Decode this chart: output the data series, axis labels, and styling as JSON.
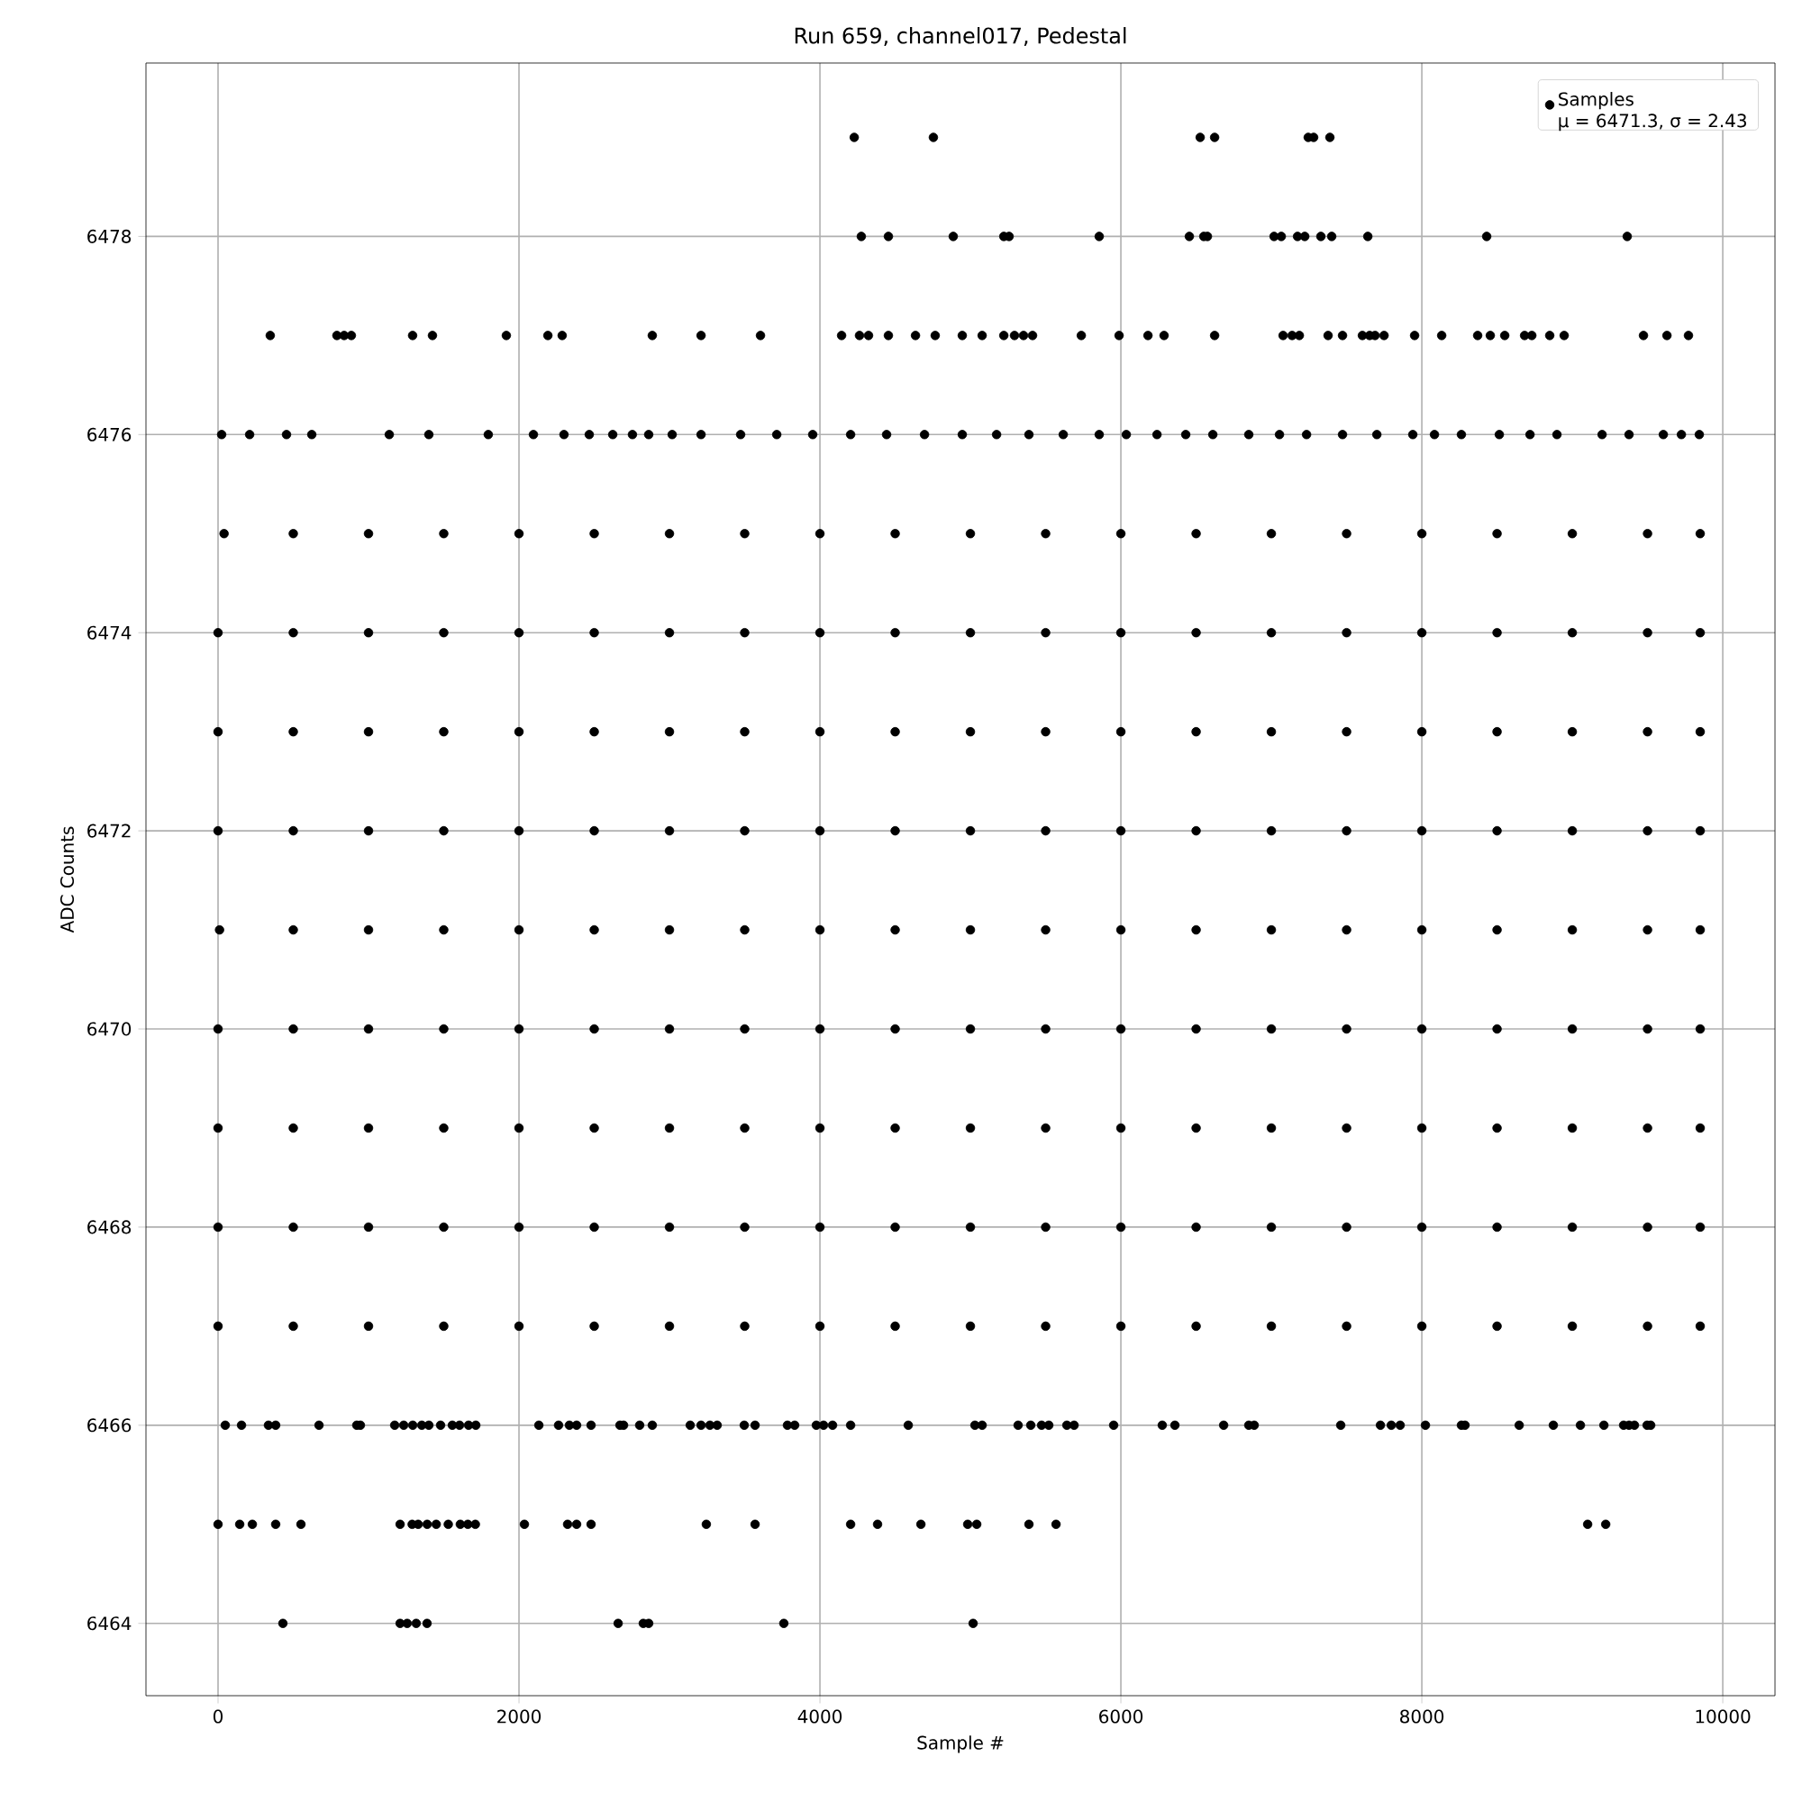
{
  "chart_data": {
    "type": "scatter",
    "title": "Run 659, channel017, Pedestal",
    "xlabel": "Sample #",
    "ylabel": "ADC Counts",
    "annotations": [
      "μ = 6471.3, σ = 2.43"
    ],
    "xlim": [
      -479,
      10347
    ],
    "ylim": [
      6463.27,
      6479.75
    ],
    "xticks": [
      0,
      2000,
      4000,
      6000,
      8000,
      10000
    ],
    "yticks": [
      6464,
      6466,
      6468,
      6470,
      6472,
      6474,
      6476,
      6478
    ],
    "grid": true,
    "legend": "top right",
    "marker": "circle",
    "series": [
      {
        "name": "Samples",
        "color": "#000000",
        "x": [
          4228,
          4754,
          6527,
          6623,
          7245,
          7281,
          7389
        ],
        "values": [
          6479,
          6479,
          6479,
          6479,
          6479,
          6479,
          6479
        ]
      },
      {
        "color": "#000000",
        "x": [
          4275,
          4455,
          4886,
          5222,
          5257,
          5856,
          6455,
          6551,
          6575,
          7018,
          7066,
          7174,
          7222,
          7329,
          7401,
          7641,
          8431,
          9365
        ],
        "values": [
          6478,
          6478,
          6478,
          6478,
          6478,
          6478,
          6478,
          6478,
          6478,
          6478,
          6478,
          6478,
          6478,
          6478,
          6478,
          6478,
          6478,
          6478
        ]
      },
      {
        "color": "#000000",
        "x": [
          347,
          790,
          838,
          886,
          1293,
          1425,
          1916,
          2192,
          2287,
          2886,
          3210,
          3605,
          4144,
          4263,
          4323,
          4455,
          4635,
          4766,
          4946,
          5078,
          5222,
          5293,
          5353,
          5413,
          5737,
          5988,
          6180,
          6287,
          6623,
          7078,
          7138,
          7186,
          7377,
          7473,
          7605,
          7653,
          7689,
          7749,
          7952,
          8132,
          8371,
          8455,
          8551,
          8683,
          8731,
          8850,
          8946,
          9473,
          9629,
          9772
        ],
        "values": [
          6477,
          6477,
          6477,
          6477,
          6477,
          6477,
          6477,
          6477,
          6477,
          6477,
          6477,
          6477,
          6477,
          6477,
          6477,
          6477,
          6477,
          6477,
          6477,
          6477,
          6477,
          6477,
          6477,
          6477,
          6477,
          6477,
          6477,
          6477,
          6477,
          6477,
          6477,
          6477,
          6477,
          6477,
          6477,
          6477,
          6477,
          6477,
          6477,
          6477,
          6477,
          6477,
          6477,
          6477,
          6477,
          6477,
          6477,
          6477,
          6477,
          6477
        ]
      },
      {
        "color": "#000000",
        "x": [
          24,
          210,
          455,
          623,
          1138,
          1401,
          1796,
          2096,
          2299,
          2467,
          2623,
          2754,
          2862,
          3018,
          3210,
          3473,
          3713,
          3952,
          4204,
          4443,
          4695,
          4946,
          5174,
          5389,
          5617,
          5856,
          6036,
          6240,
          6431,
          6611,
          6850,
          7054,
          7234,
          7473,
          7701,
          7940,
          8084,
          8263,
          8515,
          8719,
          8898,
          9198,
          9377,
          9605,
          9725,
          9844
        ],
        "values": [
          6476,
          6476,
          6476,
          6476,
          6476,
          6476,
          6476,
          6476,
          6476,
          6476,
          6476,
          6476,
          6476,
          6476,
          6476,
          6476,
          6476,
          6476,
          6476,
          6476,
          6476,
          6476,
          6476,
          6476,
          6476,
          6476,
          6476,
          6476,
          6476,
          6476,
          6476,
          6476,
          6476,
          6476,
          6476,
          6476,
          6476,
          6476,
          6476,
          6476,
          6476,
          6476,
          6476,
          6476,
          6476,
          6476
        ]
      },
      {
        "color": "#000000",
        "x": [
          40,
          500,
          1000,
          1500,
          2000,
          2500,
          3000,
          3500,
          4000,
          4500,
          5000,
          5500,
          6000,
          6500,
          7000,
          7500,
          8000,
          8500,
          9000,
          9500,
          9850
        ],
        "values": [
          6475,
          6475,
          6475,
          6475,
          6475,
          6475,
          6475,
          6475,
          6475,
          6475,
          6475,
          6475,
          6475,
          6475,
          6475,
          6475,
          6475,
          6475,
          6475,
          6475,
          6475
        ]
      },
      {
        "color": "#000000",
        "x": [
          0,
          500,
          1000,
          1500,
          2000,
          2500,
          3000,
          3500,
          4000,
          4500,
          5000,
          5500,
          6000,
          6500,
          7000,
          7500,
          8000,
          8500,
          9000,
          9500,
          9850
        ],
        "values": [
          6474,
          6474,
          6474,
          6474,
          6474,
          6474,
          6474,
          6474,
          6474,
          6474,
          6474,
          6474,
          6474,
          6474,
          6474,
          6474,
          6474,
          6474,
          6474,
          6474,
          6474
        ]
      },
      {
        "color": "#000000",
        "x": [
          0,
          500,
          1000,
          1500,
          2000,
          2500,
          3000,
          3500,
          4000,
          4500,
          5000,
          5500,
          6000,
          6500,
          7000,
          7500,
          8000,
          8500,
          9000,
          9500,
          9850
        ],
        "values": [
          6473,
          6473,
          6473,
          6473,
          6473,
          6473,
          6473,
          6473,
          6473,
          6473,
          6473,
          6473,
          6473,
          6473,
          6473,
          6473,
          6473,
          6473,
          6473,
          6473,
          6473
        ]
      },
      {
        "color": "#000000",
        "x": [
          0,
          500,
          1000,
          1500,
          2000,
          2500,
          3000,
          3500,
          4000,
          4500,
          5000,
          5500,
          6000,
          6500,
          7000,
          7500,
          8000,
          8500,
          9000,
          9500,
          9850
        ],
        "values": [
          6472,
          6472,
          6472,
          6472,
          6472,
          6472,
          6472,
          6472,
          6472,
          6472,
          6472,
          6472,
          6472,
          6472,
          6472,
          6472,
          6472,
          6472,
          6472,
          6472,
          6472
        ]
      },
      {
        "color": "#000000",
        "x": [
          10,
          500,
          1000,
          1500,
          2000,
          2500,
          3000,
          3500,
          4000,
          4500,
          5000,
          5500,
          6000,
          6500,
          7000,
          7500,
          8000,
          8500,
          9000,
          9500,
          9850
        ],
        "values": [
          6471,
          6471,
          6471,
          6471,
          6471,
          6471,
          6471,
          6471,
          6471,
          6471,
          6471,
          6471,
          6471,
          6471,
          6471,
          6471,
          6471,
          6471,
          6471,
          6471,
          6471
        ]
      },
      {
        "color": "#000000",
        "x": [
          0,
          500,
          1000,
          1500,
          2000,
          2500,
          3000,
          3500,
          4000,
          4500,
          5000,
          5500,
          6000,
          6500,
          7000,
          7500,
          8000,
          8500,
          9000,
          9500,
          9850
        ],
        "values": [
          6470,
          6470,
          6470,
          6470,
          6470,
          6470,
          6470,
          6470,
          6470,
          6470,
          6470,
          6470,
          6470,
          6470,
          6470,
          6470,
          6470,
          6470,
          6470,
          6470,
          6470
        ]
      },
      {
        "color": "#000000",
        "x": [
          0,
          500,
          1000,
          1500,
          2000,
          2500,
          3000,
          3500,
          4000,
          4500,
          5000,
          5500,
          6000,
          6500,
          7000,
          7500,
          8000,
          8500,
          9000,
          9500,
          9850
        ],
        "values": [
          6469,
          6469,
          6469,
          6469,
          6469,
          6469,
          6469,
          6469,
          6469,
          6469,
          6469,
          6469,
          6469,
          6469,
          6469,
          6469,
          6469,
          6469,
          6469,
          6469,
          6469
        ]
      },
      {
        "color": "#000000",
        "x": [
          0,
          500,
          1000,
          1500,
          2000,
          2500,
          3000,
          3500,
          4000,
          4500,
          5000,
          5500,
          6000,
          6500,
          7000,
          7500,
          8000,
          8500,
          9000,
          9500,
          9850
        ],
        "values": [
          6468,
          6468,
          6468,
          6468,
          6468,
          6468,
          6468,
          6468,
          6468,
          6468,
          6468,
          6468,
          6468,
          6468,
          6468,
          6468,
          6468,
          6468,
          6468,
          6468,
          6468
        ]
      },
      {
        "color": "#000000",
        "x": [
          0,
          500,
          1000,
          1500,
          2000,
          2500,
          3000,
          3500,
          4000,
          4500,
          5000,
          5500,
          6000,
          6500,
          7000,
          7500,
          8000,
          8500,
          9000,
          9500,
          9850
        ],
        "values": [
          6467,
          6467,
          6467,
          6467,
          6467,
          6467,
          6467,
          6467,
          6467,
          6467,
          6467,
          6467,
          6467,
          6467,
          6467,
          6467,
          6467,
          6467,
          6467,
          6467,
          6467
        ]
      },
      {
        "color": "#000000",
        "x": [
          48,
          156,
          335,
          383,
          671,
          922,
          946,
          1174,
          1234,
          1294,
          1354,
          1401,
          1479,
          1557,
          1605,
          1665,
          1713,
          2132,
          2263,
          2335,
          2383,
          2479,
          2671,
          2695,
          2802,
          2886,
          3138,
          3210,
          3269,
          3317,
          3497,
          3569,
          3784,
          3832,
          3976,
          4024,
          4084,
          4204,
          4587,
          5030,
          5078,
          5317,
          5401,
          5473,
          5521,
          5641,
          5689,
          5952,
          6275,
          6359,
          6683,
          6850,
          6886,
          7461,
          7725,
          7797,
          7856,
          8024,
          8263,
          8287,
          8647,
          8874,
          9054,
          9210,
          9341,
          9377,
          9413,
          9497,
          9521
        ],
        "values": [
          6466,
          6466,
          6466,
          6466,
          6466,
          6466,
          6466,
          6466,
          6466,
          6466,
          6466,
          6466,
          6466,
          6466,
          6466,
          6466,
          6466,
          6466,
          6466,
          6466,
          6466,
          6466,
          6466,
          6466,
          6466,
          6466,
          6466,
          6466,
          6466,
          6466,
          6466,
          6466,
          6466,
          6466,
          6466,
          6466,
          6466,
          6466,
          6466,
          6466,
          6466,
          6466,
          6466,
          6466,
          6466,
          6466,
          6466,
          6466,
          6466,
          6466,
          6466,
          6466,
          6466,
          6466,
          6466,
          6466,
          6466,
          6466,
          6466,
          6466,
          6466,
          6466,
          6466,
          6466,
          6466,
          6466,
          6466,
          6466,
          6466
        ]
      },
      {
        "color": "#000000",
        "x": [
          0,
          144,
          228,
          383,
          551,
          1210,
          1290,
          1330,
          1390,
          1450,
          1530,
          1610,
          1660,
          1710,
          2036,
          2323,
          2383,
          2479,
          3245,
          3569,
          4204,
          4383,
          4671,
          4982,
          5042,
          5389,
          5569,
          9102,
          9222
        ],
        "values": [
          6465,
          6465,
          6465,
          6465,
          6465,
          6465,
          6465,
          6465,
          6465,
          6465,
          6465,
          6465,
          6465,
          6465,
          6465,
          6465,
          6465,
          6465,
          6465,
          6465,
          6465,
          6465,
          6465,
          6465,
          6465,
          6465,
          6465,
          6465,
          6465
        ]
      },
      {
        "color": "#000000",
        "x": [
          431,
          1210,
          1257,
          1317,
          1389,
          2659,
          2826,
          2862,
          3760,
          5018
        ],
        "values": [
          6464,
          6464,
          6464,
          6464,
          6464,
          6464,
          6464,
          6464,
          6464,
          6464
        ]
      }
    ]
  }
}
